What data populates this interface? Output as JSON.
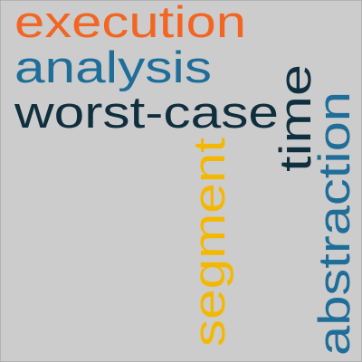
{
  "cloud": {
    "background": "#cccccc",
    "border": "#9a9a9a",
    "words": [
      {
        "text": "execution",
        "color": "#f26522",
        "orientation": "horizontal"
      },
      {
        "text": "analysis",
        "color": "#1f6e99",
        "orientation": "horizontal"
      },
      {
        "text": "worst-case",
        "color": "#0f2f3f",
        "orientation": "horizontal"
      },
      {
        "text": "time",
        "color": "#0f2f3f",
        "orientation": "vertical"
      },
      {
        "text": "abstraction",
        "color": "#1f6e99",
        "orientation": "vertical"
      },
      {
        "text": "segment",
        "color": "#f5b800",
        "orientation": "vertical"
      }
    ]
  }
}
